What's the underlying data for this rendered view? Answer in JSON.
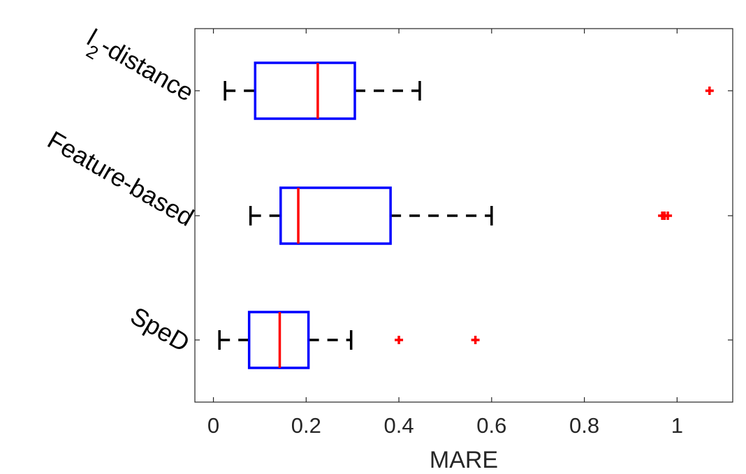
{
  "chart_data": {
    "type": "boxplot",
    "orientation": "horizontal",
    "title": "",
    "xlabel": "MARE",
    "ylabel": "",
    "xlim": [
      -0.04,
      1.12
    ],
    "xticks": [
      0,
      0.2,
      0.4,
      0.6,
      0.8,
      1
    ],
    "xtick_labels": [
      "0",
      "0.2",
      "0.4",
      "0.6",
      "0.8",
      "1"
    ],
    "grid": false,
    "categories": [
      {
        "main": "l",
        "sub": "2",
        "rest": "-distance"
      },
      {
        "main": "Feature-based",
        "sub": "",
        "rest": ""
      },
      {
        "main": "SpeD",
        "sub": "",
        "rest": ""
      }
    ],
    "series": [
      {
        "whisker_low": 0.025,
        "q1": 0.09,
        "median": 0.225,
        "q3": 0.305,
        "whisker_high": 0.445,
        "outliers": [
          1.07
        ]
      },
      {
        "whisker_low": 0.08,
        "q1": 0.145,
        "median": 0.183,
        "q3": 0.382,
        "whisker_high": 0.6,
        "outliers": [
          0.968,
          0.973,
          0.98
        ]
      },
      {
        "whisker_low": 0.013,
        "q1": 0.077,
        "median": 0.143,
        "q3": 0.205,
        "whisker_high": 0.297,
        "outliers": [
          0.4,
          0.565
        ]
      }
    ],
    "colors": {
      "box": "#0000ff",
      "median": "#ff0000",
      "whisker": "#000000",
      "outlier": "#ff0000",
      "axis": "#262626"
    }
  }
}
